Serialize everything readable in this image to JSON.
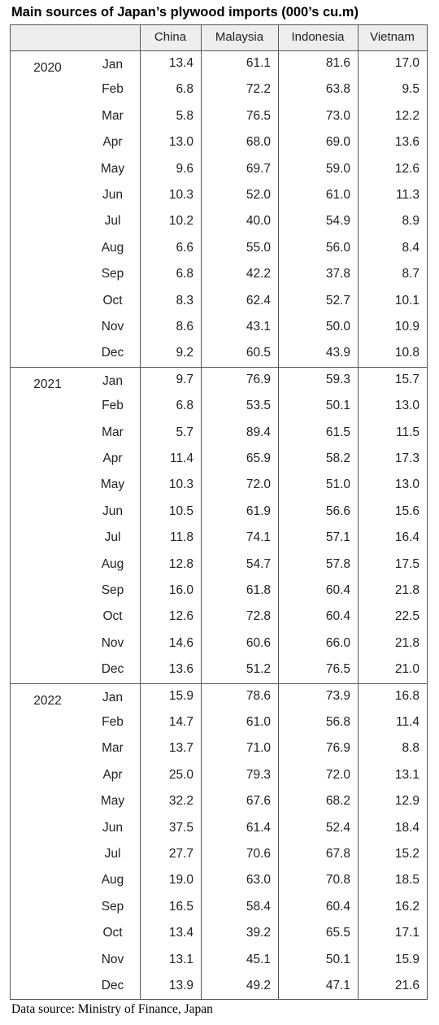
{
  "title": "Main sources of Japan’s plywood imports (000’s cu.m)",
  "columns": [
    "China",
    "Malaysia",
    "Indonesia",
    "Vietnam"
  ],
  "groups": [
    {
      "year": "2020",
      "rows": [
        {
          "month": "Jan",
          "values": [
            "13.4",
            "61.1",
            "81.6",
            "17.0"
          ]
        },
        {
          "month": "Feb",
          "values": [
            "6.8",
            "72.2",
            "63.8",
            "9.5"
          ]
        },
        {
          "month": "Mar",
          "values": [
            "5.8",
            "76.5",
            "73.0",
            "12.2"
          ]
        },
        {
          "month": "Apr",
          "values": [
            "13.0",
            "68.0",
            "69.0",
            "13.6"
          ]
        },
        {
          "month": "May",
          "values": [
            "9.6",
            "69.7",
            "59.0",
            "12.6"
          ]
        },
        {
          "month": "Jun",
          "values": [
            "10.3",
            "52.0",
            "61.0",
            "11.3"
          ]
        },
        {
          "month": "Jul",
          "values": [
            "10.2",
            "40.0",
            "54.9",
            "8.9"
          ]
        },
        {
          "month": "Aug",
          "values": [
            "6.6",
            "55.0",
            "56.0",
            "8.4"
          ]
        },
        {
          "month": "Sep",
          "values": [
            "6.8",
            "42.2",
            "37.8",
            "8.7"
          ]
        },
        {
          "month": "Oct",
          "values": [
            "8.3",
            "62.4",
            "52.7",
            "10.1"
          ]
        },
        {
          "month": "Nov",
          "values": [
            "8.6",
            "43.1",
            "50.0",
            "10.9"
          ]
        },
        {
          "month": "Dec",
          "values": [
            "9.2",
            "60.5",
            "43.9",
            "10.8"
          ]
        }
      ]
    },
    {
      "year": "2021",
      "rows": [
        {
          "month": "Jan",
          "values": [
            "9.7",
            "76.9",
            "59.3",
            "15.7"
          ]
        },
        {
          "month": "Feb",
          "values": [
            "6.8",
            "53.5",
            "50.1",
            "13.0"
          ]
        },
        {
          "month": "Mar",
          "values": [
            "5.7",
            "89.4",
            "61.5",
            "11.5"
          ]
        },
        {
          "month": "Apr",
          "values": [
            "11.4",
            "65.9",
            "58.2",
            "17.3"
          ]
        },
        {
          "month": "May",
          "values": [
            "10.3",
            "72.0",
            "51.0",
            "13.0"
          ]
        },
        {
          "month": "Jun",
          "values": [
            "10.5",
            "61.9",
            "56.6",
            "15.6"
          ]
        },
        {
          "month": "Jul",
          "values": [
            "11.8",
            "74.1",
            "57.1",
            "16.4"
          ]
        },
        {
          "month": "Aug",
          "values": [
            "12.8",
            "54.7",
            "57.8",
            "17.5"
          ]
        },
        {
          "month": "Sep",
          "values": [
            "16.0",
            "61.8",
            "60.4",
            "21.8"
          ]
        },
        {
          "month": "Oct",
          "values": [
            "12.6",
            "72.8",
            "60.4",
            "22.5"
          ]
        },
        {
          "month": "Nov",
          "values": [
            "14.6",
            "60.6",
            "66.0",
            "21.8"
          ]
        },
        {
          "month": "Dec",
          "values": [
            "13.6",
            "51.2",
            "76.5",
            "21.0"
          ]
        }
      ]
    },
    {
      "year": "2022",
      "rows": [
        {
          "month": "Jan",
          "values": [
            "15.9",
            "78.6",
            "73.9",
            "16.8"
          ]
        },
        {
          "month": "Feb",
          "values": [
            "14.7",
            "61.0",
            "56.8",
            "11.4"
          ]
        },
        {
          "month": "Mar",
          "values": [
            "13.7",
            "71.0",
            "76.9",
            "8.8"
          ]
        },
        {
          "month": "Apr",
          "values": [
            "25.0",
            "79.3",
            "72.0",
            "13.1"
          ]
        },
        {
          "month": "May",
          "values": [
            "32.2",
            "67.6",
            "68.2",
            "12.9"
          ]
        },
        {
          "month": "Jun",
          "values": [
            "37.5",
            "61.4",
            "52.4",
            "18.4"
          ]
        },
        {
          "month": "Jul",
          "values": [
            "27.7",
            "70.6",
            "67.8",
            "15.2"
          ]
        },
        {
          "month": "Aug",
          "values": [
            "19.0",
            "63.0",
            "70.8",
            "18.5"
          ]
        },
        {
          "month": "Sep",
          "values": [
            "16.5",
            "58.4",
            "60.4",
            "16.2"
          ]
        },
        {
          "month": "Oct",
          "values": [
            "13.4",
            "39.2",
            "65.5",
            "17.1"
          ]
        },
        {
          "month": "Nov",
          "values": [
            "13.1",
            "45.1",
            "50.1",
            "15.9"
          ]
        },
        {
          "month": "Dec",
          "values": [
            "13.9",
            "49.2",
            "47.1",
            "21.6"
          ]
        }
      ]
    }
  ],
  "source": "Data source: Ministry of Finance, Japan"
}
